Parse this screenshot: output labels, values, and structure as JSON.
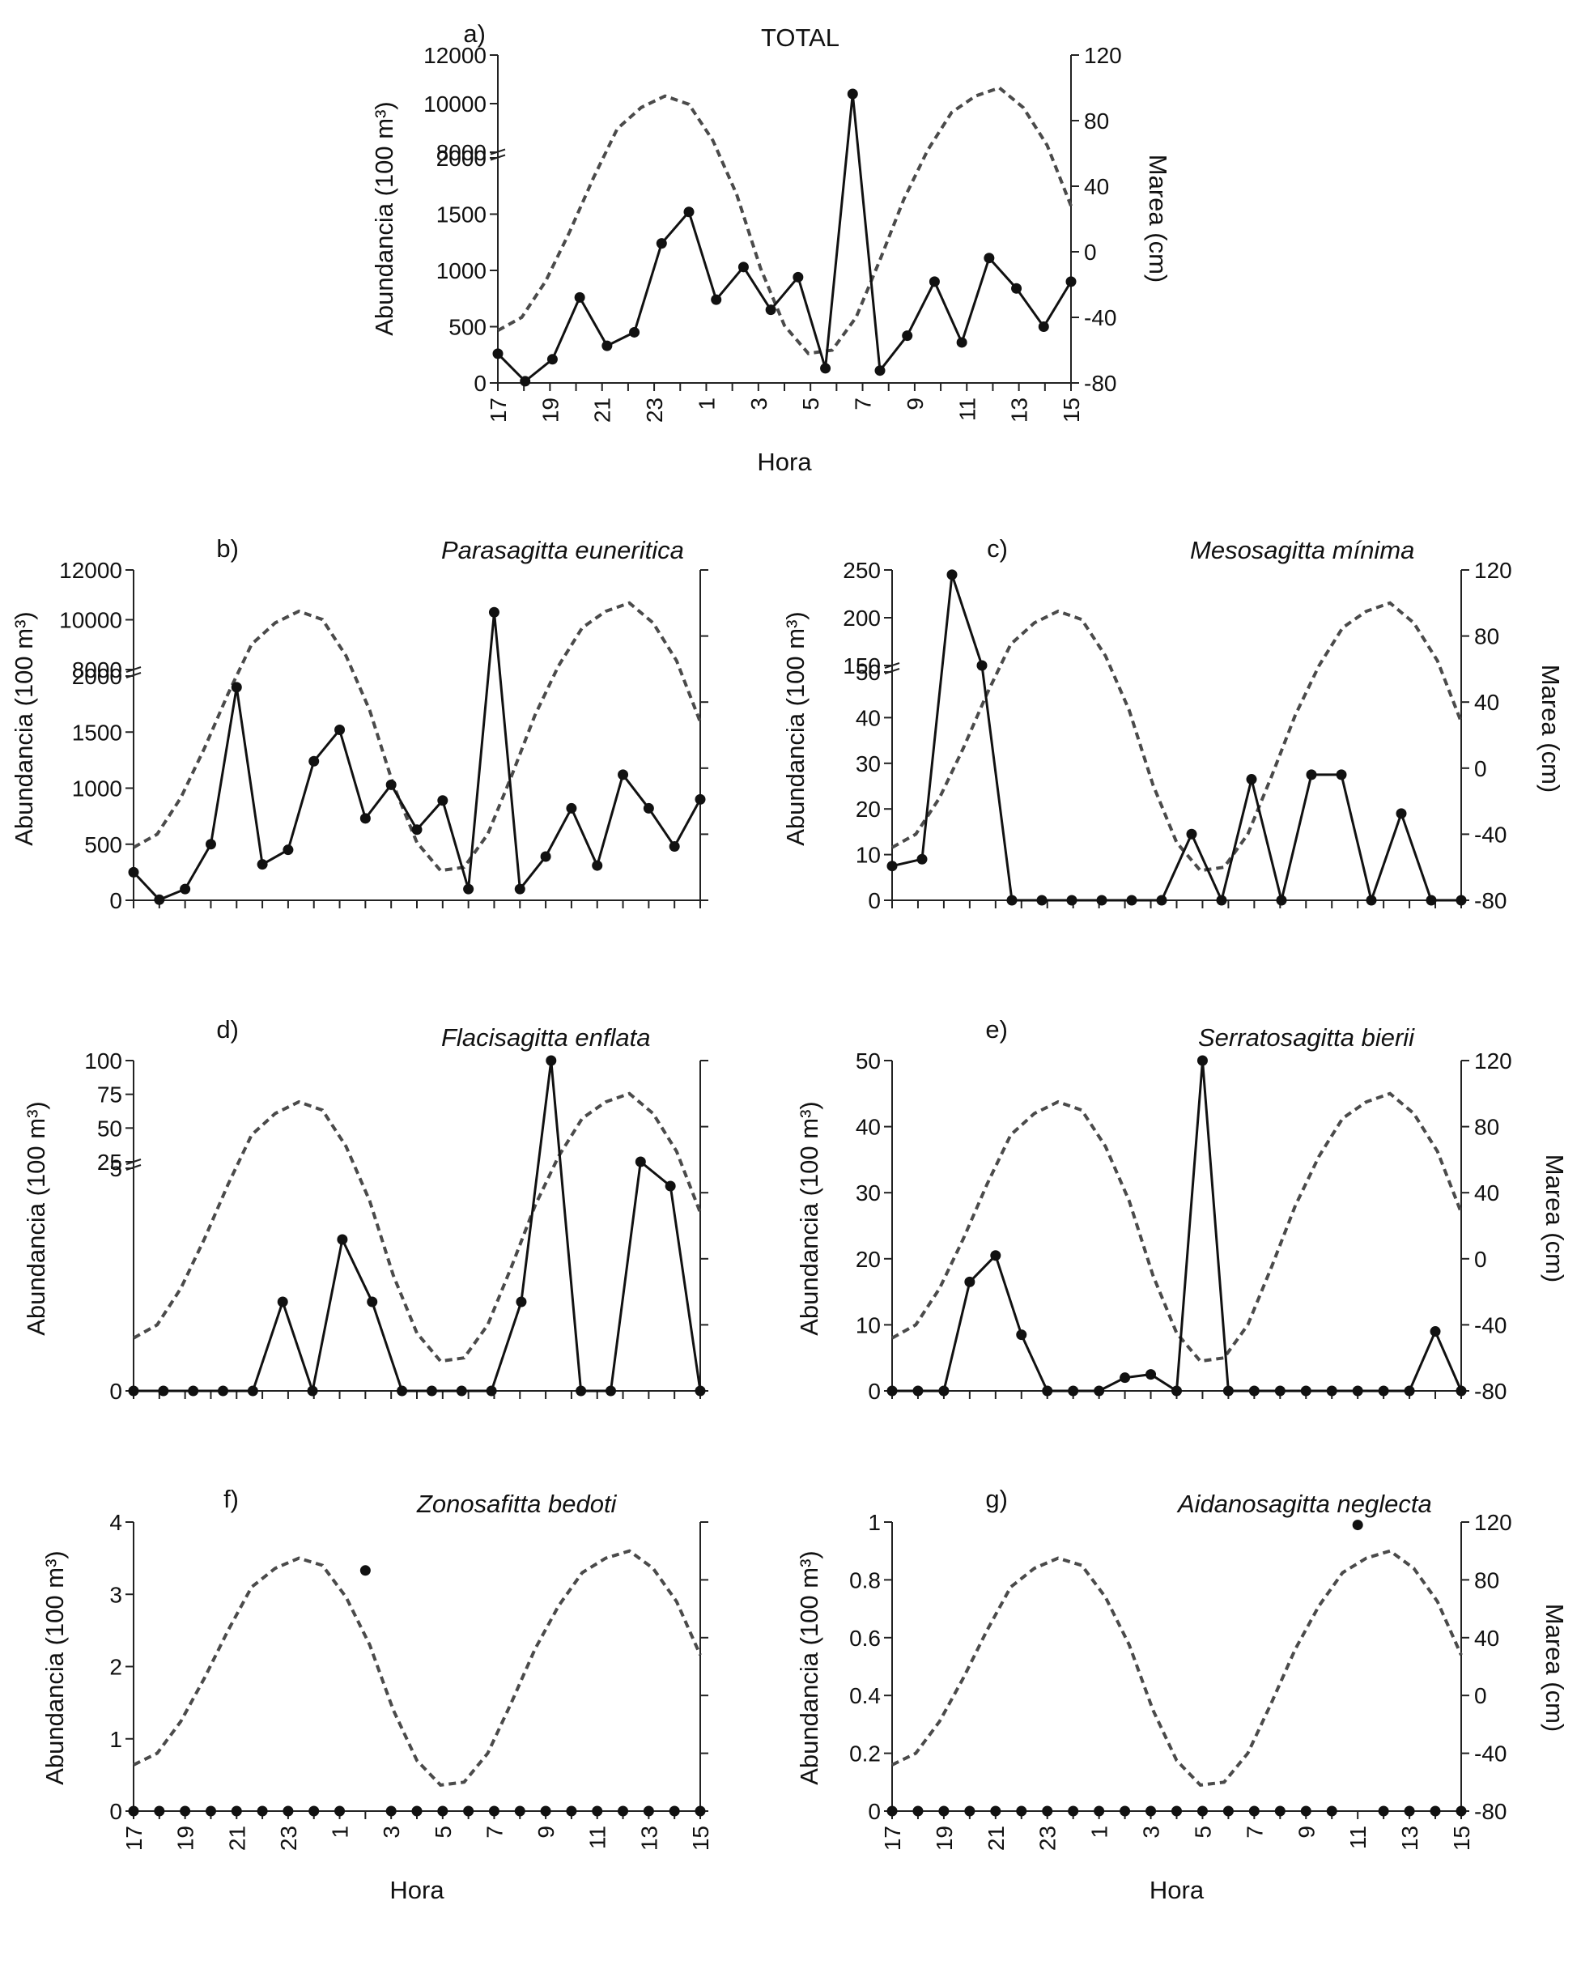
{
  "chart_data": [
    {
      "id": "a",
      "type": "line",
      "panel_label": "a)",
      "title": "TOTAL",
      "xlabel": "Hora",
      "ylabel": "Abundancia  (100 m³)",
      "y2label": "Marea (cm)",
      "x_ticks": [
        "17",
        "19",
        "21",
        "23",
        "1",
        "3",
        "5",
        "7",
        "9",
        "11",
        "13",
        "15"
      ],
      "y_break": true,
      "y_lower_ticks": [
        0,
        500,
        1000,
        1500,
        2000
      ],
      "y_upper_ticks": [
        8000,
        10000,
        12000
      ],
      "y2_ticks": [
        -80,
        -40,
        0,
        40,
        80,
        120
      ],
      "series": [
        {
          "name": "Abundancia",
          "style": "solid-markers",
          "values": [
            260,
            15,
            210,
            760,
            330,
            450,
            1240,
            1520,
            740,
            1030,
            650,
            940,
            130,
            10400,
            110,
            420,
            900,
            360,
            1110,
            840,
            500,
            900
          ]
        },
        {
          "name": "Marea",
          "style": "dashed",
          "values": [
            -48,
            -40,
            -18,
            12,
            45,
            75,
            88,
            95,
            90,
            68,
            35,
            -10,
            -45,
            -62,
            -60,
            -40,
            -5,
            32,
            62,
            85,
            95,
            100,
            88,
            65,
            28
          ]
        }
      ]
    },
    {
      "id": "b",
      "type": "line",
      "panel_label": "b)",
      "title": "Parasagitta euneritica",
      "xlabel": "",
      "ylabel": "Abundancia  (100 m³)",
      "y2label": "",
      "x_ticks": [],
      "y_break": true,
      "y_lower_ticks": [
        0,
        500,
        1000,
        1500,
        2000
      ],
      "y_upper_ticks": [
        8000,
        10000,
        12000
      ],
      "y2_ticks": [],
      "series": [
        {
          "name": "Abundancia",
          "style": "solid-markers",
          "values": [
            250,
            5,
            100,
            500,
            1900,
            320,
            450,
            1240,
            1520,
            730,
            1030,
            630,
            890,
            100,
            10300,
            100,
            390,
            820,
            310,
            1120,
            820,
            480,
            900
          ]
        },
        {
          "name": "Marea",
          "style": "dashed",
          "values": [
            -48,
            -40,
            -18,
            12,
            45,
            75,
            88,
            95,
            90,
            68,
            35,
            -10,
            -45,
            -62,
            -60,
            -40,
            -5,
            32,
            62,
            85,
            95,
            100,
            88,
            65,
            28
          ]
        }
      ]
    },
    {
      "id": "c",
      "type": "line",
      "panel_label": "c)",
      "title": "Mesosagitta mínima",
      "xlabel": "",
      "ylabel": "Abundancia  (100 m³)",
      "y2label": "Marea (cm)",
      "x_ticks": [],
      "y_break": true,
      "y_lower_ticks": [
        0,
        10,
        20,
        30,
        40,
        50
      ],
      "y_upper_ticks": [
        150,
        200,
        250
      ],
      "y2_ticks": [
        -80,
        -40,
        0,
        40,
        80,
        120
      ],
      "series": [
        {
          "name": "Abundancia",
          "style": "solid-markers",
          "values": [
            7.5,
            9,
            245,
            150,
            0,
            0,
            0,
            0,
            0,
            0,
            14.5,
            0,
            26.5,
            0,
            27.5,
            27.5,
            0,
            19,
            0,
            0
          ]
        },
        {
          "name": "Marea",
          "style": "dashed",
          "values": [
            -48,
            -40,
            -18,
            12,
            45,
            75,
            88,
            95,
            90,
            68,
            35,
            -10,
            -45,
            -62,
            -60,
            -40,
            -5,
            32,
            62,
            85,
            95,
            100,
            88,
            65,
            28
          ]
        }
      ]
    },
    {
      "id": "d",
      "type": "line",
      "panel_label": "d)",
      "title": "Flacisagitta enflata",
      "xlabel": "",
      "ylabel": "Abundancia  (100 m³)",
      "y2label": "",
      "x_ticks": [],
      "y_break": true,
      "y_lower_ticks": [
        0,
        5
      ],
      "y_upper_ticks": [
        25,
        50,
        75,
        100
      ],
      "y2_ticks": [],
      "series": [
        {
          "name": "Abundancia",
          "style": "solid-markers",
          "values": [
            0,
            0,
            0,
            0,
            0,
            2,
            0,
            3.4,
            2,
            0,
            0,
            0,
            0,
            2,
            100,
            0,
            0,
            25,
            4.6,
            0
          ]
        },
        {
          "name": "Marea",
          "style": "dashed",
          "values": [
            -48,
            -40,
            -18,
            12,
            45,
            75,
            88,
            95,
            90,
            68,
            35,
            -10,
            -45,
            -62,
            -60,
            -40,
            -5,
            32,
            62,
            85,
            95,
            100,
            88,
            65,
            28
          ]
        }
      ]
    },
    {
      "id": "e",
      "type": "line",
      "panel_label": "e)",
      "title": "Serratosagitta bierii",
      "xlabel": "",
      "ylabel": "Abundancia  (100 m³)",
      "y2label": "Marea (cm)",
      "x_ticks": [],
      "y_break": false,
      "y_lower_ticks": [
        0,
        10,
        20,
        30,
        40,
        50
      ],
      "y_upper_ticks": [],
      "y2_ticks": [
        -80,
        -40,
        0,
        40,
        80,
        120
      ],
      "series": [
        {
          "name": "Abundancia",
          "style": "solid-markers",
          "values": [
            0,
            0,
            0,
            16.5,
            20.5,
            8.5,
            0,
            0,
            0,
            2,
            2.5,
            0,
            50,
            0,
            0,
            0,
            0,
            0,
            0,
            0,
            0,
            9,
            0
          ]
        },
        {
          "name": "Marea",
          "style": "dashed",
          "values": [
            -48,
            -40,
            -18,
            12,
            45,
            75,
            88,
            95,
            90,
            68,
            35,
            -10,
            -45,
            -62,
            -60,
            -40,
            -5,
            32,
            62,
            85,
            95,
            100,
            88,
            65,
            28
          ]
        }
      ]
    },
    {
      "id": "f",
      "type": "scatter",
      "panel_label": "f)",
      "title": "Zonosafitta bedoti",
      "xlabel": "Hora",
      "ylabel": "Abundancia  (100 m³)",
      "y2label": "",
      "x_ticks": [
        "17",
        "19",
        "21",
        "23",
        "1",
        "3",
        "5",
        "7",
        "9",
        "11",
        "13",
        "15"
      ],
      "y_break": false,
      "y_lower_ticks": [
        0,
        1,
        2,
        3,
        4
      ],
      "y_upper_ticks": [],
      "y2_ticks": [],
      "series": [
        {
          "name": "Abundancia",
          "style": "markers",
          "values": [
            0,
            0,
            0,
            0,
            0,
            0,
            0,
            0,
            0,
            3.33,
            0,
            0,
            0,
            0,
            0,
            0,
            0,
            0,
            0,
            0,
            0,
            0,
            0
          ]
        },
        {
          "name": "Marea",
          "style": "dashed",
          "values": [
            -48,
            -40,
            -18,
            12,
            45,
            75,
            88,
            95,
            90,
            68,
            35,
            -10,
            -45,
            -62,
            -60,
            -40,
            -5,
            32,
            62,
            85,
            95,
            100,
            88,
            65,
            28
          ]
        }
      ]
    },
    {
      "id": "g",
      "type": "scatter",
      "panel_label": "g)",
      "title": "Aidanosagitta neglecta",
      "xlabel": "Hora",
      "ylabel": "Abundancia  (100 m³)",
      "y2label": "Marea (cm)",
      "x_ticks": [
        "17",
        "19",
        "21",
        "23",
        "1",
        "3",
        "5",
        "7",
        "9",
        "11",
        "13",
        "15"
      ],
      "y_break": false,
      "y_lower_ticks": [
        "0",
        "0.2",
        "0.4",
        "0.6",
        "0.8",
        "1"
      ],
      "y_upper_ticks": [],
      "y2_ticks": [
        -80,
        -40,
        0,
        40,
        80,
        120
      ],
      "series": [
        {
          "name": "Abundancia",
          "style": "markers",
          "values": [
            0,
            0,
            0,
            0,
            0,
            0,
            0,
            0,
            0,
            0,
            0,
            0,
            0,
            0,
            0,
            0,
            0,
            0,
            0.99,
            0,
            0,
            0,
            0
          ]
        },
        {
          "name": "Marea",
          "style": "dashed",
          "values": [
            -48,
            -40,
            -18,
            12,
            45,
            75,
            88,
            95,
            90,
            68,
            35,
            -10,
            -45,
            -62,
            -60,
            -40,
            -5,
            32,
            62,
            85,
            95,
            100,
            88,
            65,
            28
          ]
        }
      ]
    }
  ]
}
